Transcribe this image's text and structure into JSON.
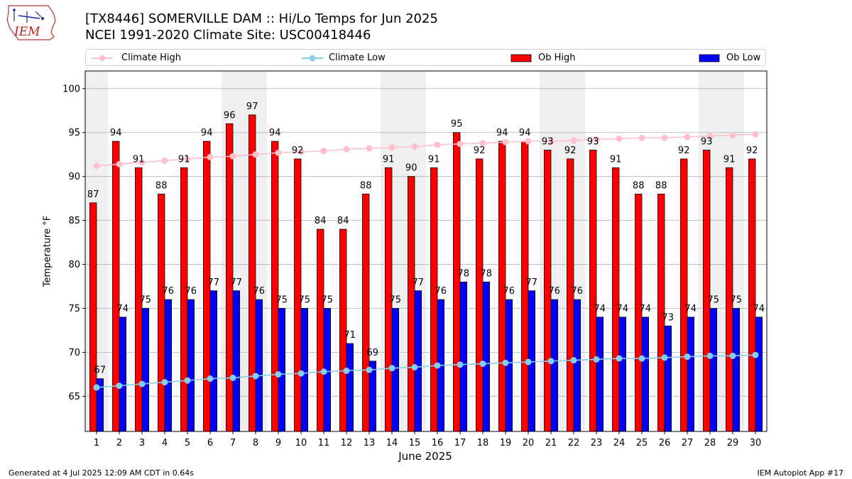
{
  "header": {
    "logo_text": "IEM",
    "title_line1": "[TX8446] SOMERVILLE DAM :: Hi/Lo Temps for Jun 2025",
    "title_line2": "NCEI 1991-2020 Climate Site: USC00418446"
  },
  "legend": {
    "placement": "top, above plot",
    "items": [
      {
        "label": "Climate High",
        "color": "#ffc0cb",
        "kind": "line-marker"
      },
      {
        "label": "Climate Low",
        "color": "#87ceeb",
        "kind": "line-marker"
      },
      {
        "label": "Ob High",
        "color": "#ff0000",
        "kind": "bar"
      },
      {
        "label": "Ob Low",
        "color": "#0000ff",
        "kind": "bar"
      }
    ]
  },
  "footer": {
    "left": "Generated at 4 Jul 2025 12:09 AM CDT in 0.64s",
    "right": "IEM Autoplot App #17"
  },
  "chart_data": {
    "type": "bar",
    "xlabel": "June 2025",
    "ylabel": "Temperature °F",
    "ylim": [
      61,
      102
    ],
    "yticks": [
      65,
      70,
      75,
      80,
      85,
      90,
      95,
      100
    ],
    "grid": true,
    "categories": [
      "1",
      "2",
      "3",
      "4",
      "5",
      "6",
      "7",
      "8",
      "9",
      "10",
      "11",
      "12",
      "13",
      "14",
      "15",
      "16",
      "17",
      "18",
      "19",
      "20",
      "21",
      "22",
      "23",
      "24",
      "25",
      "26",
      "27",
      "28",
      "29",
      "30"
    ],
    "weekend_days": [
      1,
      7,
      8,
      14,
      15,
      21,
      22,
      28,
      29
    ],
    "series": [
      {
        "name": "Ob High",
        "type": "bar",
        "color": "#ff0000",
        "values": [
          87,
          94,
          91,
          88,
          91,
          94,
          96,
          97,
          94,
          92,
          84,
          84,
          88,
          91,
          90,
          91,
          95,
          92,
          94,
          94,
          93,
          92,
          93,
          91,
          88,
          88,
          92,
          93,
          91,
          92
        ]
      },
      {
        "name": "Ob Low",
        "type": "bar",
        "color": "#0000ff",
        "values": [
          67,
          74,
          75,
          76,
          76,
          77,
          77,
          76,
          75,
          75,
          75,
          71,
          69,
          75,
          77,
          76,
          78,
          78,
          76,
          77,
          76,
          76,
          74,
          74,
          74,
          73,
          74,
          75,
          75,
          74
        ]
      },
      {
        "name": "Climate High",
        "type": "line",
        "color": "#ffc0cb",
        "values": [
          91.2,
          91.4,
          91.6,
          91.8,
          92.0,
          92.2,
          92.3,
          92.5,
          92.7,
          92.8,
          92.9,
          93.1,
          93.2,
          93.3,
          93.4,
          93.6,
          93.7,
          93.8,
          93.9,
          94.0,
          94.0,
          94.1,
          94.2,
          94.3,
          94.4,
          94.4,
          94.5,
          94.6,
          94.7,
          94.8
        ]
      },
      {
        "name": "Climate Low",
        "type": "line",
        "color": "#87ceeb",
        "values": [
          66.0,
          66.2,
          66.4,
          66.6,
          66.8,
          67.0,
          67.1,
          67.3,
          67.5,
          67.6,
          67.8,
          67.9,
          68.0,
          68.2,
          68.3,
          68.5,
          68.6,
          68.7,
          68.8,
          68.9,
          69.0,
          69.1,
          69.2,
          69.3,
          69.3,
          69.4,
          69.5,
          69.6,
          69.6,
          69.7
        ]
      }
    ]
  }
}
